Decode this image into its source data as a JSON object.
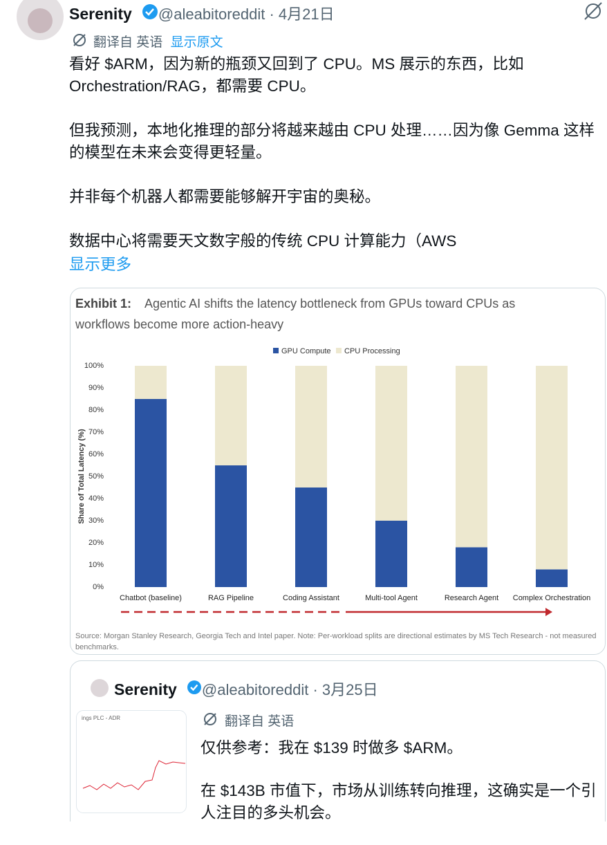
{
  "tweet": {
    "author": "Serenity",
    "handle": "@aleabitoreddit",
    "separator": "·",
    "date": "4月21日",
    "translated_from": "翻译自 英语",
    "show_original": "显示原文",
    "paragraphs": [
      "看好 $ARM，因为新的瓶颈又回到了 CPU。MS 展示的东西，比如 Orchestration/RAG，都需要 CPU。",
      "但我预测，本地化推理的部分将越来越由 CPU 处理……因为像 Gemma 这样的模型在未来会变得更轻量。",
      "并非每个机器人都需要能够解开宇宙的奥秘。",
      "数据中心将需要天文数字般的传统 CPU 计算能力（AWS"
    ],
    "show_more": "显示更多"
  },
  "chart_data": {
    "type": "bar",
    "stacked": true,
    "title": "Exhibit 1:",
    "subtitle": "Agentic AI shifts the latency bottleneck from GPUs toward CPUs as workflows become more action-heavy",
    "ylabel": "Share of Total Latency (%)",
    "categories": [
      "Chatbot (baseline)",
      "RAG Pipeline",
      "Coding Assistant",
      "Multi-tool Agent",
      "Research Agent",
      "Complex Orchestration"
    ],
    "series": [
      {
        "name": "GPU Compute",
        "color": "#2b54a3",
        "values": [
          85,
          55,
          45,
          30,
          18,
          8
        ]
      },
      {
        "name": "CPU Processing",
        "color": "#ede8cf",
        "values": [
          15,
          45,
          55,
          70,
          82,
          92
        ]
      }
    ],
    "ylim": [
      0,
      100
    ],
    "yticks": [
      {
        "value": 0,
        "label": "0%"
      },
      {
        "value": 10,
        "label": "10%"
      },
      {
        "value": 20,
        "label": "20%"
      },
      {
        "value": 30,
        "label": "30%"
      },
      {
        "value": 40,
        "label": "40%"
      },
      {
        "value": 50,
        "label": "50%"
      },
      {
        "value": 60,
        "label": "60%"
      },
      {
        "value": 70,
        "label": "70%"
      },
      {
        "value": 80,
        "label": "80%"
      },
      {
        "value": 90,
        "label": "90%"
      },
      {
        "value": 100,
        "label": "100%"
      }
    ],
    "legend": "top",
    "grid": false,
    "source": "Source: Morgan Stanley Research, Georgia Tech and Intel paper. Note: Per-workload splits are directional estimates by MS Tech Research - not measured benchmarks."
  },
  "quote": {
    "author": "Serenity",
    "handle": "@aleabitoreddit",
    "separator": "·",
    "date": "3月25日",
    "translated_from": "翻译自 英语",
    "paragraphs": [
      "仅供参考：我在 $139 时做多 $ARM。",
      "在 $143B 市值下，市场从训练转向推理，这确实是一个引人注目的多头机会。"
    ],
    "thumbnail_title": "ings PLC - ADR"
  }
}
